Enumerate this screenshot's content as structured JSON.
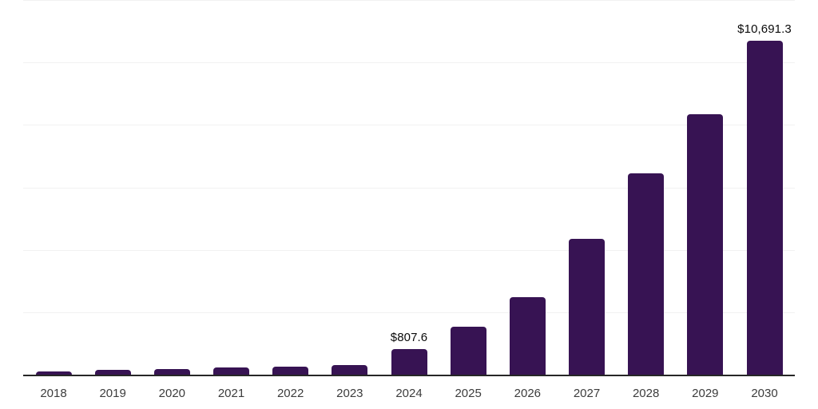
{
  "chart_data": {
    "type": "bar",
    "title": "",
    "xlabel": "",
    "ylabel": "",
    "categories": [
      "2018",
      "2019",
      "2020",
      "2021",
      "2022",
      "2023",
      "2024",
      "2025",
      "2026",
      "2027",
      "2028",
      "2029",
      "2030"
    ],
    "values": [
      115,
      150,
      180,
      220,
      255,
      295,
      807.6,
      1540,
      2495,
      4360,
      6460,
      8330,
      10691.3
    ],
    "point_labels": [
      "",
      "",
      "",
      "",
      "",
      "",
      "$807.6",
      "",
      "",
      "",
      "",
      "",
      "$10,691.3"
    ],
    "ylim": [
      0,
      12000
    ],
    "gridline_step": 2000,
    "grid": "horizontal",
    "y_tick_labels_shown": false,
    "legend_position": "none",
    "colors": {
      "bar": "#371353",
      "axis_line": "#262626",
      "gridline": "#f1f1f1",
      "tick_label": "#3c3c3c",
      "value_label": "#0a0a0a",
      "background": "#ffffff"
    }
  }
}
